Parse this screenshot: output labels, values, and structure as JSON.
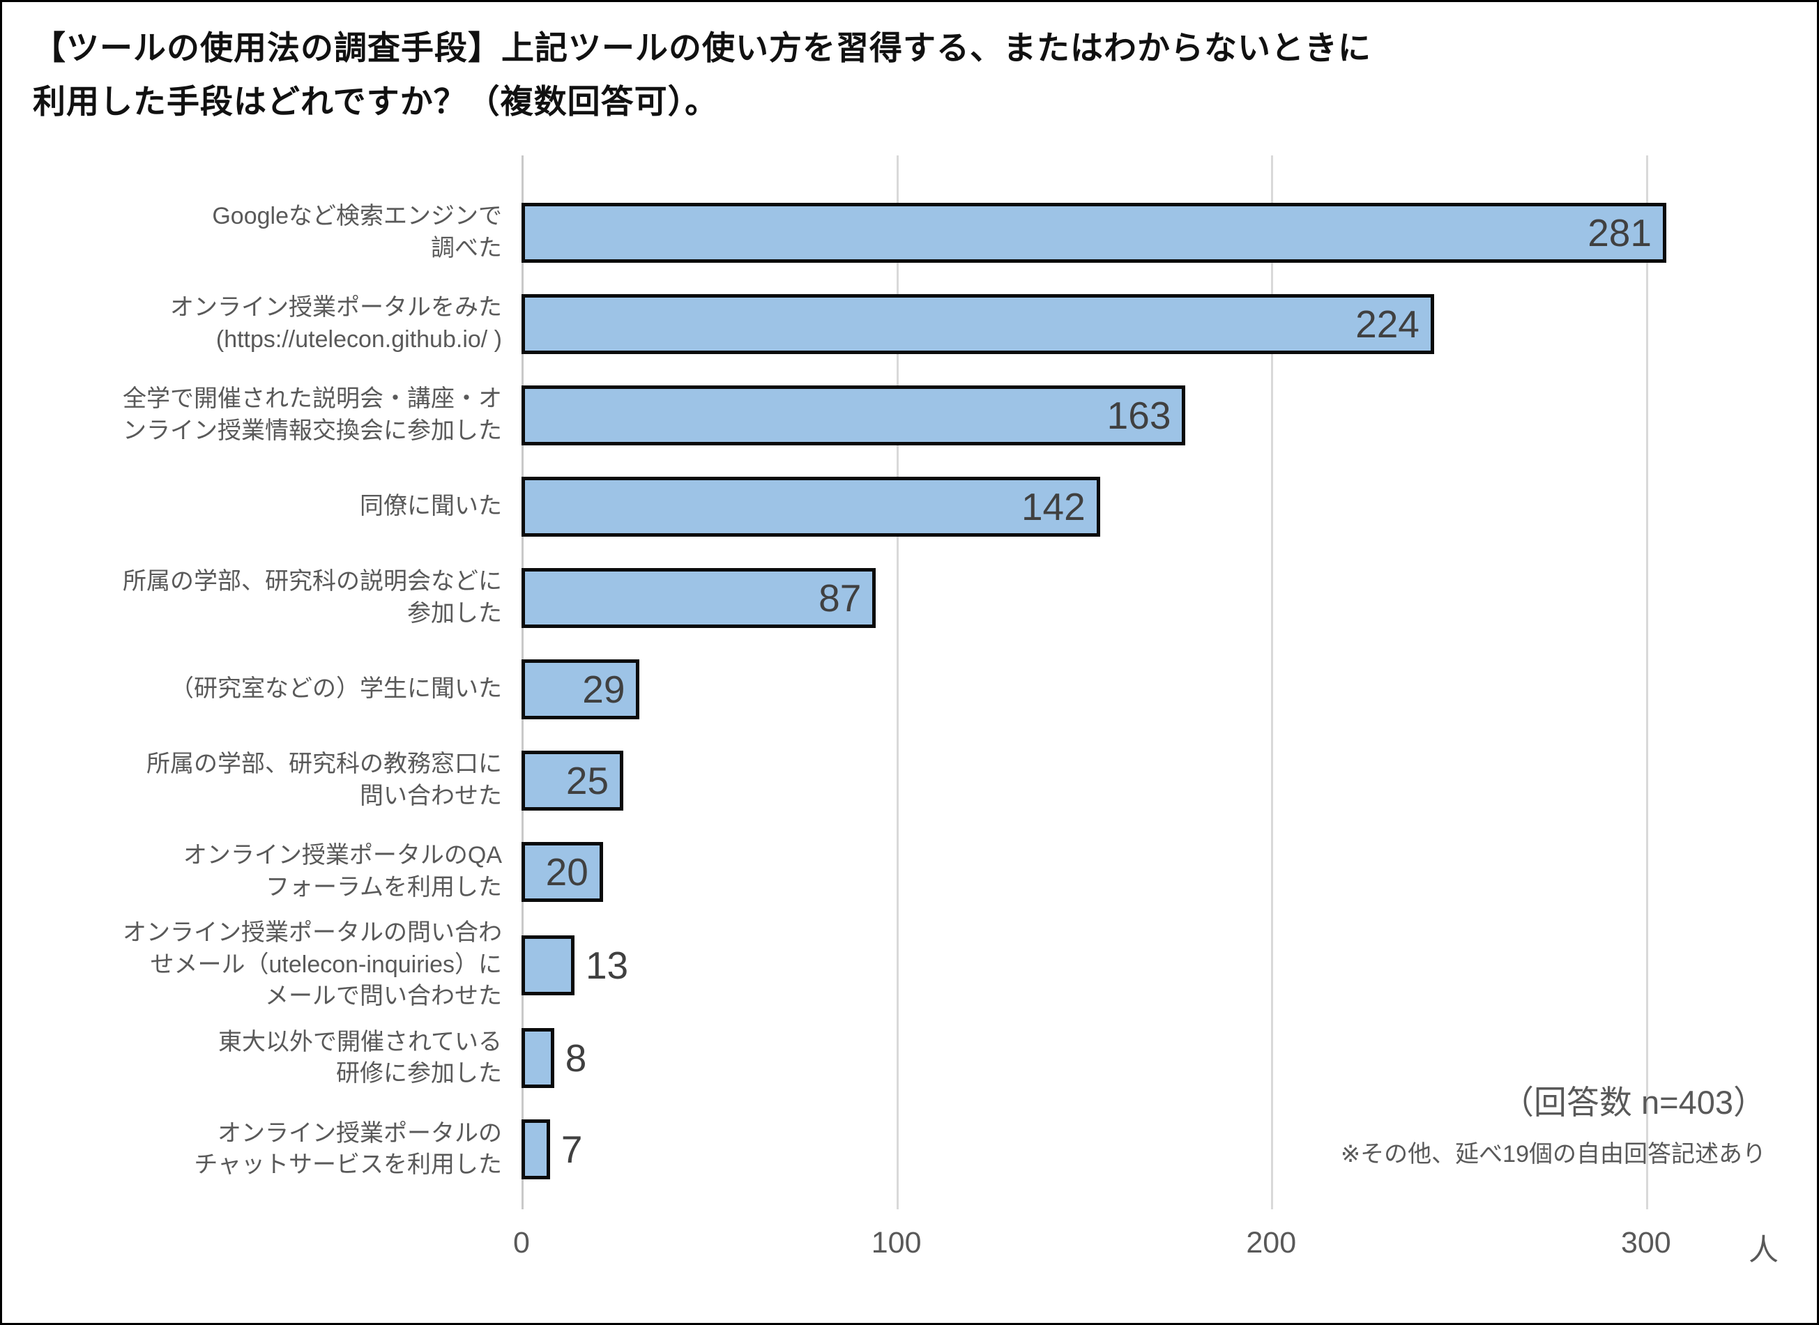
{
  "page": {
    "title_line1": "【ツールの使用法の調査手段】上記ツールの使い方を習得する、またはわからないときに",
    "title_line2": "利用した手段はどれですか？（複数回答可）。"
  },
  "chart_data": {
    "type": "bar",
    "orientation": "horizontal",
    "categories": [
      [
        "Googleなど検索エンジンで",
        "調べた"
      ],
      [
        "オンライン授業ポータルをみた",
        "(https://utelecon.github.io/ )"
      ],
      [
        "全学で開催された説明会・講座・オ",
        "ンライン授業情報交換会に参加した"
      ],
      [
        "同僚に聞いた"
      ],
      [
        "所属の学部、研究科の説明会などに",
        "参加した"
      ],
      [
        "（研究室などの）学生に聞いた"
      ],
      [
        "所属の学部、研究科の教務窓口に",
        "問い合わせた"
      ],
      [
        "オンライン授業ポータルのQA",
        "フォーラムを利用した"
      ],
      [
        "オンライン授業ポータルの問い合わ",
        "せメール（utelecon-inquiries）に",
        "メールで問い合わせた"
      ],
      [
        "東大以外で開催されている",
        "研修に参加した"
      ],
      [
        "オンライン授業ポータルの",
        "チャットサービスを利用した"
      ]
    ],
    "values": [
      281,
      224,
      163,
      142,
      87,
      29,
      25,
      20,
      13,
      8,
      7
    ],
    "x_ticks": [
      0,
      100,
      200,
      300
    ],
    "x_axis_unit": "人",
    "x_max_visible": 319,
    "inside_label_min_value": 20,
    "bar_color": "#9dc3e6",
    "bar_border_color": "#0a0a0a",
    "gridline_color": "#d9d9d9",
    "label_color": "#595959",
    "value_label_color": "#404040",
    "annotations": {
      "response_count": "（回答数 n=403）",
      "other_note": "※その他、延べ19個の自由回答記述あり"
    },
    "title": "【ツールの使用法の調査手段】上記ツールの使い方を習得する、またはわからないときに利用した手段はどれですか？（複数回答可）。",
    "grid": true,
    "legend": false
  }
}
